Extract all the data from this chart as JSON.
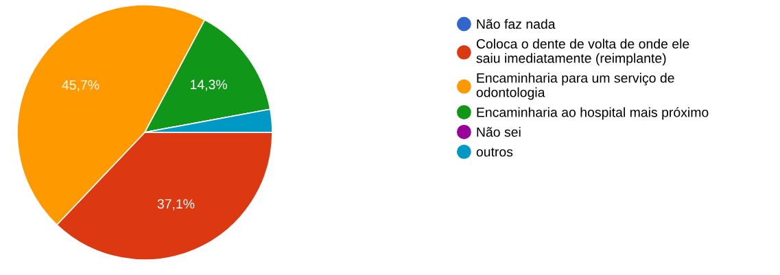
{
  "chart_data": {
    "type": "pie",
    "categories": [
      "Não faz nada",
      "Coloca o dente de volta de onde ele\nsaiu imediatamente (reimplante)",
      "Encaminharia para um serviço de\nodontologia",
      "Encaminharia ao hospital mais próximo",
      "Não sei",
      "outros"
    ],
    "values": [
      0,
      37.1,
      45.7,
      14.3,
      0,
      2.9
    ],
    "colors": [
      "#3366cc",
      "#dc3912",
      "#ff9900",
      "#109618",
      "#990099",
      "#0099c6"
    ],
    "value_labels": [
      null,
      "37,1%",
      "45,7%",
      "14,3%",
      null,
      null
    ],
    "legend": "right"
  }
}
